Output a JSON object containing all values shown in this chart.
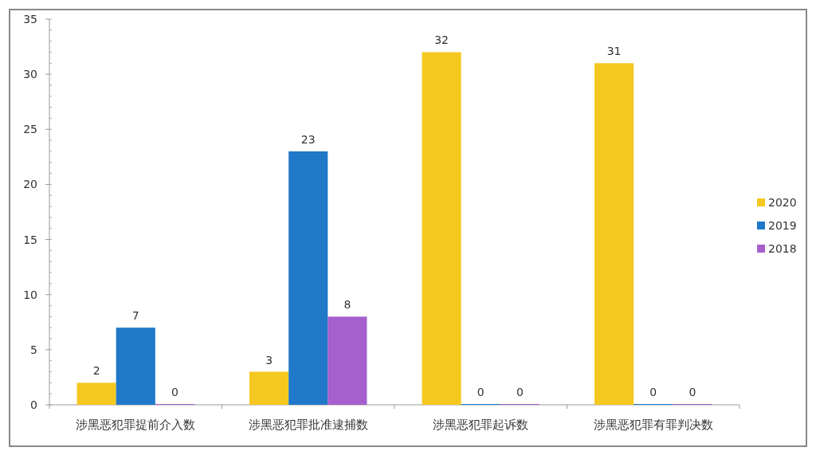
{
  "chart_data": {
    "type": "bar",
    "categories": [
      "涉黑恶犯罪提前介入数",
      "涉黑恶犯罪批准逮捕数",
      "涉黑恶犯罪起诉数",
      "涉黑恶犯罪有罪判决数"
    ],
    "series": [
      {
        "name": "2020",
        "color": "#f5c820",
        "values": [
          2,
          3,
          32,
          31
        ]
      },
      {
        "name": "2019",
        "color": "#1f78c8",
        "values": [
          7,
          23,
          0,
          0
        ]
      },
      {
        "name": "2018",
        "color": "#a65fcc",
        "values": [
          0,
          8,
          0,
          0
        ]
      }
    ],
    "ylim": [
      0,
      35
    ],
    "yticks": [
      0,
      5,
      10,
      15,
      20,
      25,
      30,
      35
    ],
    "grid": false,
    "legend": "right",
    "data_labels": true
  }
}
